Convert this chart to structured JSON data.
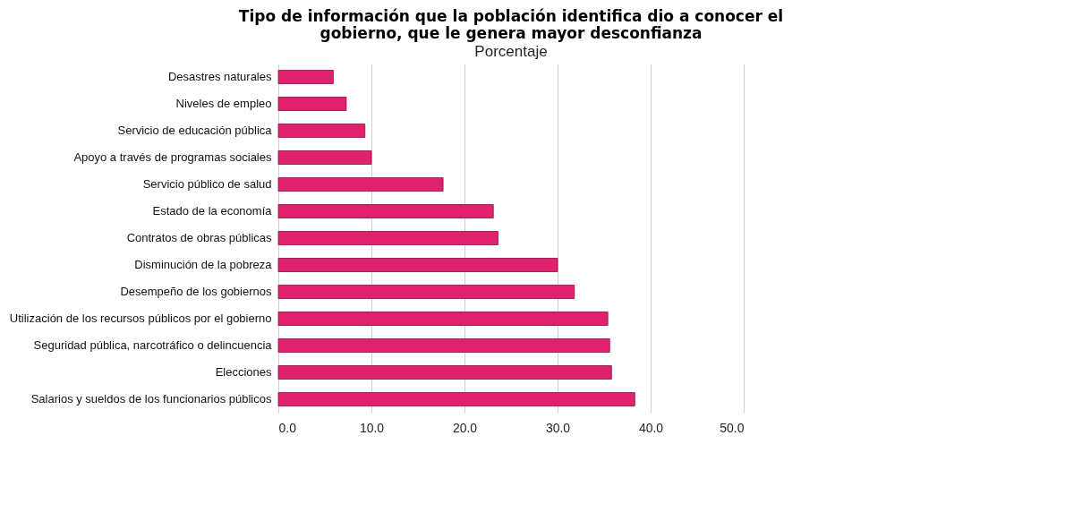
{
  "chart_data": {
    "type": "bar",
    "orientation": "horizontal",
    "title": "Tipo de información que la población identifica dio a conocer el gobierno, que le genera mayor desconfianza",
    "subtitle": "Porcentaje",
    "categories": [
      "Desastres naturales",
      "Niveles de empleo",
      "Servicio de educación pública",
      "Apoyo a través de programas sociales",
      "Servicio público de salud",
      "Estado de la economía",
      "Contratos de obras públicas",
      "Disminución de la pobreza",
      "Desempeño de los gobiernos",
      "Utilización de los recursos públicos por el gobierno",
      "Seguridad pública, narcotráfico o delincuencia",
      "Elecciones",
      "Salarios y sueldos de los funcionarios públicos"
    ],
    "values": [
      5.9,
      7.3,
      9.3,
      10.0,
      17.7,
      23.1,
      23.6,
      30.0,
      31.8,
      35.4,
      35.6,
      35.8,
      38.3
    ],
    "color": "#e0226e",
    "xlim": [
      0,
      50
    ],
    "xticks": [
      {
        "value": 0,
        "label": "0.0"
      },
      {
        "value": 10,
        "label": "10.0"
      },
      {
        "value": 20,
        "label": "20.0"
      },
      {
        "value": 30,
        "label": "30.0"
      },
      {
        "value": 40,
        "label": "40.0"
      },
      {
        "value": 50,
        "label": "50.0"
      }
    ],
    "grid": "x"
  }
}
